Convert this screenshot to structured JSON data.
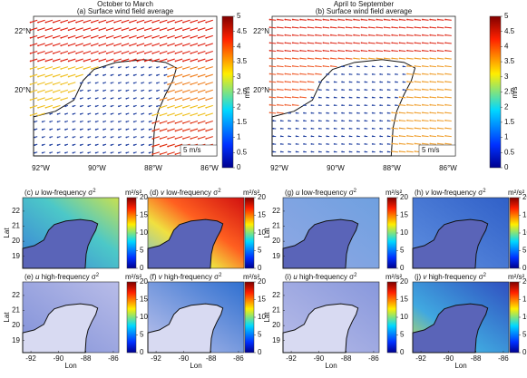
{
  "panels_top": [
    {
      "period": "October to March",
      "title": "(a) Surface wind field average"
    },
    {
      "period": "April to September",
      "title": "(b) Surface wind field average"
    }
  ],
  "map_axes": {
    "lon_labels": [
      "92°W",
      "90°W",
      "88°W",
      "86°W"
    ],
    "lat_labels": [
      "22°N",
      "20°N"
    ],
    "scale_arrow": "5 m/s"
  },
  "wind_colorbar": {
    "label": "m/s",
    "lim": [
      0,
      5
    ],
    "ticks": [
      0,
      0.5,
      1,
      1.5,
      2,
      2.5,
      3,
      3.5,
      4,
      4.5,
      5
    ]
  },
  "variance_panels": [
    {
      "tag": "(c)",
      "var": "u",
      "name": "low-frequency σ",
      "power": "2"
    },
    {
      "tag": "(d)",
      "var": "v",
      "name": "low-frequency σ",
      "power": "2"
    },
    {
      "tag": "(g)",
      "var": "u",
      "name": "low-frequency σ",
      "power": "2"
    },
    {
      "tag": "(h)",
      "var": "v",
      "name": "low-frequency σ",
      "power": "2"
    },
    {
      "tag": "(e)",
      "var": "u",
      "name": "high-frequency σ",
      "power": "2"
    },
    {
      "tag": "(f)",
      "var": "v",
      "name": "high-frequency σ",
      "power": "2"
    },
    {
      "tag": "(i)",
      "var": "u",
      "name": "high-frequency σ",
      "power": "2"
    },
    {
      "tag": "(j)",
      "var": "v",
      "name": "high-frequency σ",
      "power": "2"
    }
  ],
  "variance_colorbar": {
    "label": "m²/s²",
    "lim": [
      0,
      20
    ],
    "ticks": [
      0,
      5,
      10,
      15,
      20
    ]
  },
  "variance_axes": {
    "xticks": [
      -92,
      -90,
      -88,
      -86
    ],
    "yticks": [
      19,
      20,
      21,
      22
    ],
    "xlabel": "Lon",
    "ylabel": "Lat"
  }
}
